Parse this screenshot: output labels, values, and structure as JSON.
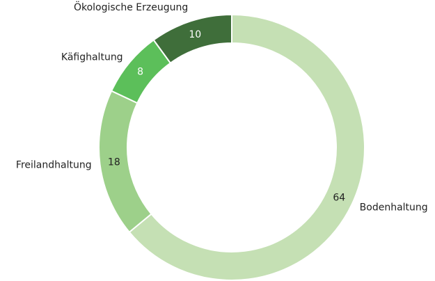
{
  "chart_data": {
    "type": "donut",
    "categories": [
      "Bodenhaltung",
      "Freilandhaltung",
      "Käfighaltung",
      "Ökologische Erzeugung"
    ],
    "values": [
      64,
      18,
      8,
      10
    ],
    "colors": [
      "#c5e0b4",
      "#9dd08a",
      "#5cbf5a",
      "#3f6e3a"
    ],
    "value_label_colors": [
      "#222222",
      "#222222",
      "#ffffff",
      "#ffffff"
    ]
  }
}
